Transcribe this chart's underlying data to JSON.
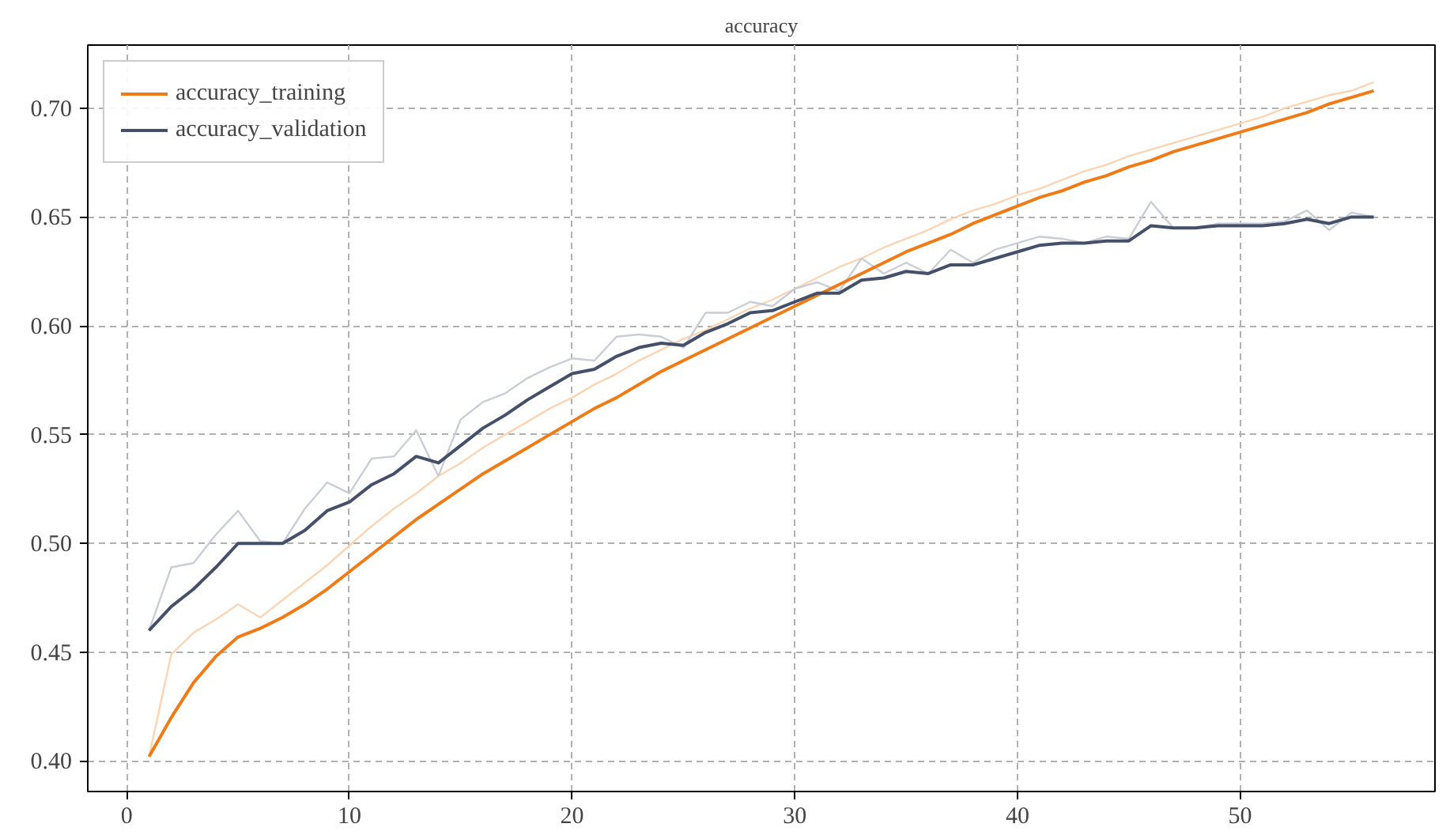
{
  "chart_data": {
    "type": "line",
    "title": "accuracy",
    "x": [
      1,
      2,
      3,
      4,
      5,
      6,
      7,
      8,
      9,
      10,
      11,
      12,
      13,
      14,
      15,
      16,
      17,
      18,
      19,
      20,
      21,
      22,
      23,
      24,
      25,
      26,
      27,
      28,
      29,
      30,
      31,
      32,
      33,
      34,
      35,
      36,
      37,
      38,
      39,
      40,
      41,
      42,
      43,
      44,
      45,
      46,
      47,
      48,
      49,
      50,
      51,
      52,
      53,
      54,
      55,
      56
    ],
    "series": [
      {
        "color": "#fbd5b3",
        "values": [
          0.402,
          0.449,
          0.459,
          0.465,
          0.472,
          0.466,
          0.474,
          0.482,
          0.49,
          0.499,
          0.508,
          0.516,
          0.523,
          0.531,
          0.537,
          0.544,
          0.55,
          0.556,
          0.562,
          0.567,
          0.573,
          0.578,
          0.584,
          0.589,
          0.594,
          0.598,
          0.603,
          0.608,
          0.612,
          0.617,
          0.622,
          0.627,
          0.631,
          0.636,
          0.64,
          0.644,
          0.649,
          0.653,
          0.656,
          0.66,
          0.663,
          0.667,
          0.671,
          0.674,
          0.678,
          0.681,
          0.684,
          0.687,
          0.69,
          0.693,
          0.696,
          0.7,
          0.703,
          0.706,
          0.708,
          0.712
        ]
      },
      {
        "color": "#c9cdd6",
        "values": [
          0.46,
          0.489,
          0.491,
          0.504,
          0.515,
          0.501,
          0.5,
          0.516,
          0.528,
          0.523,
          0.539,
          0.54,
          0.552,
          0.531,
          0.557,
          0.565,
          0.569,
          0.576,
          0.581,
          0.585,
          0.584,
          0.595,
          0.596,
          0.595,
          0.59,
          0.606,
          0.606,
          0.611,
          0.609,
          0.617,
          0.62,
          0.616,
          0.631,
          0.624,
          0.629,
          0.624,
          0.635,
          0.629,
          0.635,
          0.638,
          0.641,
          0.64,
          0.638,
          0.641,
          0.64,
          0.657,
          0.645,
          0.645,
          0.647,
          0.647,
          0.647,
          0.648,
          0.653,
          0.644,
          0.652,
          0.65
        ]
      },
      {
        "name": "accuracy_training",
        "color": "#f07b16",
        "values": [
          0.402,
          0.42,
          0.436,
          0.448,
          0.457,
          0.461,
          0.466,
          0.472,
          0.479,
          0.487,
          0.495,
          0.503,
          0.511,
          0.518,
          0.525,
          0.532,
          0.538,
          0.544,
          0.55,
          0.556,
          0.562,
          0.567,
          0.573,
          0.579,
          0.584,
          0.589,
          0.594,
          0.599,
          0.604,
          0.609,
          0.614,
          0.619,
          0.624,
          0.629,
          0.634,
          0.638,
          0.642,
          0.647,
          0.651,
          0.655,
          0.659,
          0.662,
          0.666,
          0.669,
          0.673,
          0.676,
          0.68,
          0.683,
          0.686,
          0.689,
          0.692,
          0.695,
          0.698,
          0.702,
          0.705,
          0.708
        ]
      },
      {
        "name": "accuracy_validation",
        "color": "#44506a",
        "values": [
          0.46,
          0.471,
          0.479,
          0.489,
          0.5,
          0.5,
          0.5,
          0.506,
          0.515,
          0.519,
          0.527,
          0.532,
          0.54,
          0.537,
          0.545,
          0.553,
          0.559,
          0.566,
          0.572,
          0.578,
          0.58,
          0.586,
          0.59,
          0.592,
          0.591,
          0.597,
          0.601,
          0.606,
          0.607,
          0.611,
          0.615,
          0.615,
          0.621,
          0.622,
          0.625,
          0.624,
          0.628,
          0.628,
          0.631,
          0.634,
          0.637,
          0.638,
          0.638,
          0.639,
          0.639,
          0.646,
          0.645,
          0.645,
          0.646,
          0.646,
          0.646,
          0.647,
          0.649,
          0.647,
          0.65,
          0.65
        ]
      }
    ],
    "xlim": [
      -1.75,
      58.75
    ],
    "ylim": [
      0.386,
      0.729
    ],
    "xticks": [
      0,
      10,
      20,
      30,
      40,
      50
    ],
    "yticks": [
      {
        "value": 0.4,
        "label": "0.40"
      },
      {
        "value": 0.45,
        "label": "0.45"
      },
      {
        "value": 0.5,
        "label": "0.50"
      },
      {
        "value": 0.55,
        "label": "0.55"
      },
      {
        "value": 0.6,
        "label": "0.60"
      },
      {
        "value": 0.65,
        "label": "0.65"
      },
      {
        "value": 0.7,
        "label": "0.70"
      }
    ],
    "grid": true,
    "legend": "top left",
    "line_style": "solid",
    "marker": "none"
  }
}
